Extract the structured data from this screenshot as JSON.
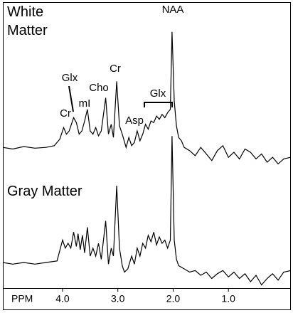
{
  "chart_data": [
    {
      "type": "line",
      "x": [
        5.08,
        4.9,
        4.7,
        4.5,
        4.3,
        4.15,
        4.05,
        3.98,
        3.93,
        3.88,
        3.8,
        3.75,
        3.7,
        3.65,
        3.6,
        3.55,
        3.5,
        3.45,
        3.4,
        3.35,
        3.3,
        3.22,
        3.17,
        3.12,
        3.08,
        3.02,
        2.97,
        2.92,
        2.85,
        2.8,
        2.75,
        2.7,
        2.65,
        2.6,
        2.55,
        2.5,
        2.45,
        2.4,
        2.35,
        2.3,
        2.25,
        2.2,
        2.15,
        2.1,
        2.05,
        2.02,
        1.98,
        1.94,
        1.9,
        1.85,
        1.8,
        1.7,
        1.6,
        1.5,
        1.4,
        1.3,
        1.2,
        1.1,
        1.0,
        0.9,
        0.8,
        0.7,
        0.6,
        0.5,
        0.4,
        0.3,
        0.2,
        0.1,
        0.0,
        -0.13
      ],
      "series": [
        {
          "name": "White Matter",
          "color": "#000000",
          "values": [
            12,
            11,
            12.5,
            11.5,
            12,
            13,
            17,
            24,
            20,
            22,
            30,
            27,
            20,
            22,
            28,
            35,
            22,
            20,
            24,
            19,
            22,
            42,
            20,
            26,
            18,
            52,
            25,
            20,
            12,
            18,
            13,
            15,
            22,
            16,
            20,
            26,
            23,
            28,
            27,
            31,
            29,
            32,
            30,
            33,
            35,
            82,
            40,
            25,
            18,
            16,
            12,
            10,
            7,
            12,
            8,
            4,
            10,
            13,
            6,
            9,
            5,
            11,
            9,
            5,
            8,
            3,
            6,
            2,
            5,
            6
          ]
        }
      ],
      "xlim": [
        5.08,
        -0.13
      ],
      "ylim": [
        0,
        100
      ],
      "annotations": [
        "NAA",
        "Cr",
        "Cho",
        "mI",
        "Glx",
        "Asp",
        "Cr",
        "Glx"
      ]
    },
    {
      "type": "line",
      "x": [
        5.08,
        4.9,
        4.7,
        4.5,
        4.3,
        4.1,
        4.0,
        3.95,
        3.9,
        3.85,
        3.8,
        3.75,
        3.72,
        3.68,
        3.64,
        3.6,
        3.55,
        3.5,
        3.45,
        3.4,
        3.35,
        3.3,
        3.22,
        3.17,
        3.12,
        3.08,
        3.02,
        2.97,
        2.92,
        2.88,
        2.82,
        2.75,
        2.7,
        2.65,
        2.6,
        2.55,
        2.5,
        2.45,
        2.4,
        2.35,
        2.3,
        2.25,
        2.2,
        2.15,
        2.1,
        2.05,
        2.02,
        1.98,
        1.94,
        1.9,
        1.8,
        1.7,
        1.6,
        1.5,
        1.4,
        1.3,
        1.2,
        1.1,
        1.0,
        0.9,
        0.8,
        0.7,
        0.6,
        0.5,
        0.4,
        0.3,
        0.2,
        0.1,
        0.0,
        -0.13
      ],
      "series": [
        {
          "name": "Gray Matter",
          "color": "#000000",
          "values": [
            16,
            15,
            16,
            15,
            16,
            17,
            30,
            25,
            28,
            25,
            35,
            26,
            34,
            24,
            33,
            22,
            38,
            20,
            25,
            20,
            28,
            18,
            42,
            15,
            25,
            20,
            64,
            25,
            14,
            10,
            12,
            20,
            15,
            25,
            20,
            28,
            25,
            33,
            29,
            35,
            27,
            32,
            28,
            30,
            25,
            30,
            95,
            30,
            18,
            14,
            12,
            10,
            11,
            8,
            10,
            6,
            9,
            11,
            7,
            10,
            6,
            9,
            4,
            8,
            2,
            6,
            9,
            5,
            10,
            11
          ]
        }
      ],
      "xlim": [
        5.08,
        -0.13
      ],
      "ylim": [
        0,
        100
      ],
      "xlabel": "PPM",
      "xticks": [
        {
          "value": 4,
          "label": "4.0"
        },
        {
          "value": 3,
          "label": "3.0"
        },
        {
          "value": 2,
          "label": "2.0"
        },
        {
          "value": 1,
          "label": "1.0"
        }
      ]
    }
  ]
}
